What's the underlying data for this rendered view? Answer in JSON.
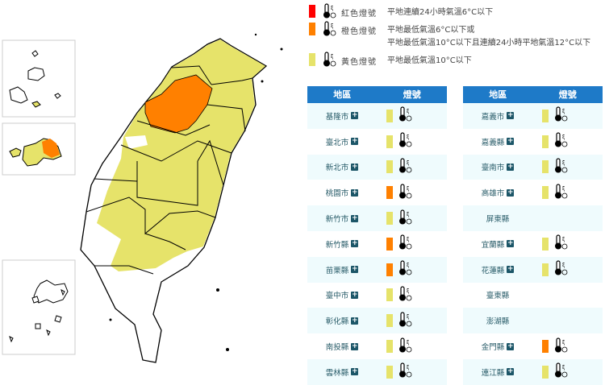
{
  "colors": {
    "red": "#ff0000",
    "orange": "#ff8000",
    "yellow": "#e6e36a",
    "header": "#1e7ac8"
  },
  "legend": [
    {
      "color": "#ff0000",
      "name": "紅色燈號",
      "desc": [
        "平地連續24小時氣溫6°C以下"
      ]
    },
    {
      "color": "#ff8000",
      "name": "橙色燈號",
      "desc": [
        "平地最低氣溫6°C以下或",
        "平地最低氣溫10°C以下且連續24小時平地氣溫12°C以下"
      ]
    },
    {
      "color": "#e6e36a",
      "name": "黃色燈號",
      "desc": [
        "平地最低氣溫10°C以下"
      ]
    }
  ],
  "table_headers": {
    "region": "地區",
    "signal": "燈號"
  },
  "left_table": [
    {
      "name": "基隆市",
      "level": "yellow",
      "plus": true
    },
    {
      "name": "臺北市",
      "level": "yellow",
      "plus": true
    },
    {
      "name": "新北市",
      "level": "yellow",
      "plus": true
    },
    {
      "name": "桃園市",
      "level": "orange",
      "plus": true
    },
    {
      "name": "新竹市",
      "level": "yellow",
      "plus": true
    },
    {
      "name": "新竹縣",
      "level": "orange",
      "plus": true
    },
    {
      "name": "苗栗縣",
      "level": "orange",
      "plus": true
    },
    {
      "name": "臺中市",
      "level": "yellow",
      "plus": true
    },
    {
      "name": "彰化縣",
      "level": "yellow",
      "plus": true
    },
    {
      "name": "南投縣",
      "level": "yellow",
      "plus": true
    },
    {
      "name": "雲林縣",
      "level": "yellow",
      "plus": true
    }
  ],
  "right_table": [
    {
      "name": "嘉義市",
      "level": "yellow",
      "plus": true
    },
    {
      "name": "嘉義縣",
      "level": "yellow",
      "plus": true
    },
    {
      "name": "臺南市",
      "level": "yellow",
      "plus": true
    },
    {
      "name": "高雄市",
      "level": "yellow",
      "plus": true
    },
    {
      "name": "屏東縣",
      "level": "none",
      "plus": false
    },
    {
      "name": "宜蘭縣",
      "level": "yellow",
      "plus": true
    },
    {
      "name": "花蓮縣",
      "level": "yellow",
      "plus": true
    },
    {
      "name": "臺東縣",
      "level": "none",
      "plus": false
    },
    {
      "name": "澎湖縣",
      "level": "none",
      "plus": false
    },
    {
      "name": "金門縣",
      "level": "orange",
      "plus": true
    },
    {
      "name": "連江縣",
      "level": "yellow",
      "plus": true
    }
  ],
  "plus_symbol": "+"
}
